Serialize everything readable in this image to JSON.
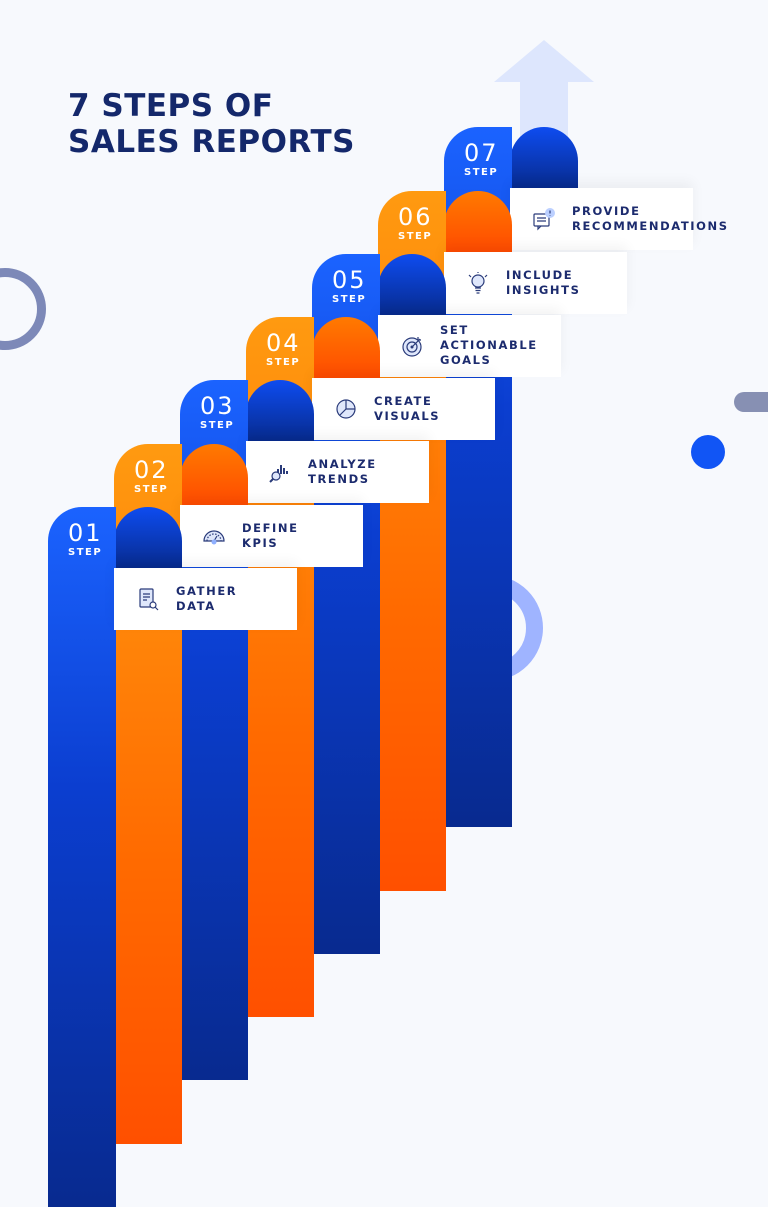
{
  "title_line1": "7 STEPS OF",
  "title_line2": "SALES REPORTS",
  "step_word": "STEP",
  "colors": {
    "blue": "#1155f5",
    "orange": "#ff6a00",
    "title": "#14286b"
  },
  "steps": [
    {
      "number": "01",
      "label": "GATHER\nDATA",
      "color": "blue",
      "icon": "document-search-icon"
    },
    {
      "number": "02",
      "label": "DEFINE\nKPIS",
      "color": "orange",
      "icon": "gauge-icon"
    },
    {
      "number": "03",
      "label": "ANALYZE\nTRENDS",
      "color": "blue",
      "icon": "chart-magnifier-icon"
    },
    {
      "number": "04",
      "label": "CREATE\nVISUALS",
      "color": "orange",
      "icon": "pie-chart-icon"
    },
    {
      "number": "05",
      "label": "SET ACTIONABLE\nGOALS",
      "color": "blue",
      "icon": "target-icon"
    },
    {
      "number": "06",
      "label": "INCLUDE\nINSIGHTS",
      "color": "orange",
      "icon": "lightbulb-icon"
    },
    {
      "number": "07",
      "label": "PROVIDE\nRECOMMENDATIONS",
      "color": "blue",
      "icon": "chat-alert-icon"
    }
  ]
}
